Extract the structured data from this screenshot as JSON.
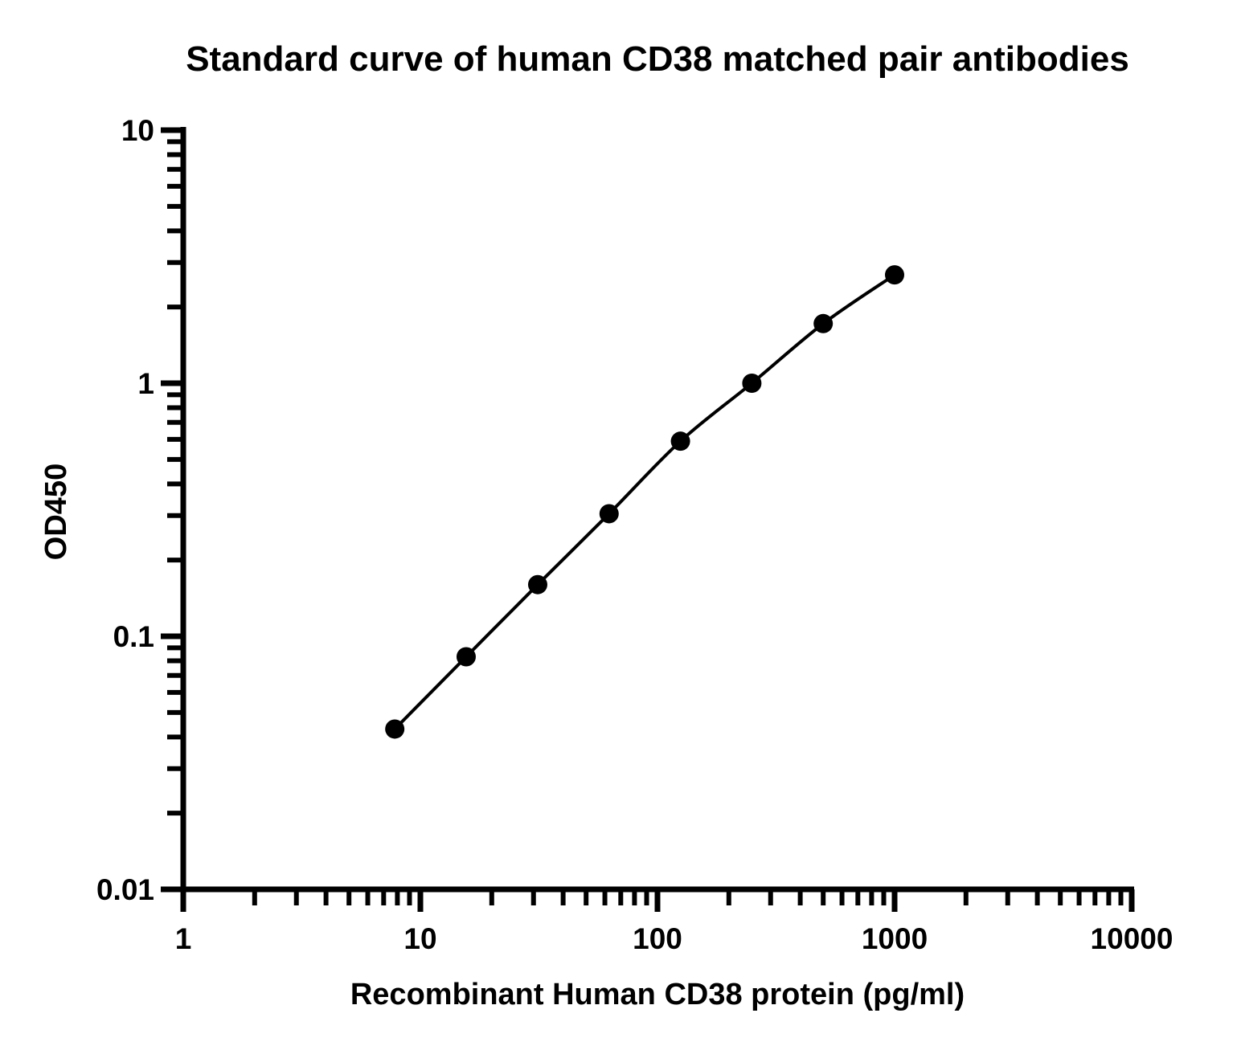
{
  "chart_data": {
    "type": "scatter",
    "title": "Standard curve of human CD38 matched pair antibodies",
    "xlabel": "Recombinant Human CD38 protein (pg/ml)",
    "ylabel": "OD450",
    "x_scale": "log",
    "y_scale": "log",
    "xlim": [
      1,
      10000
    ],
    "ylim": [
      0.01,
      10
    ],
    "x_ticks": [
      "1",
      "10",
      "100",
      "1000",
      "10000"
    ],
    "y_ticks": [
      "0.01",
      "0.1",
      "1",
      "10"
    ],
    "grid": false,
    "line_color": "#000000",
    "marker_color": "#000000",
    "series": [
      {
        "x": [
          7.8,
          15.6,
          31.25,
          62.5,
          125,
          250,
          500,
          1000
        ],
        "values": [
          0.043,
          0.083,
          0.16,
          0.305,
          0.59,
          1.0,
          1.72,
          2.68
        ]
      }
    ]
  }
}
